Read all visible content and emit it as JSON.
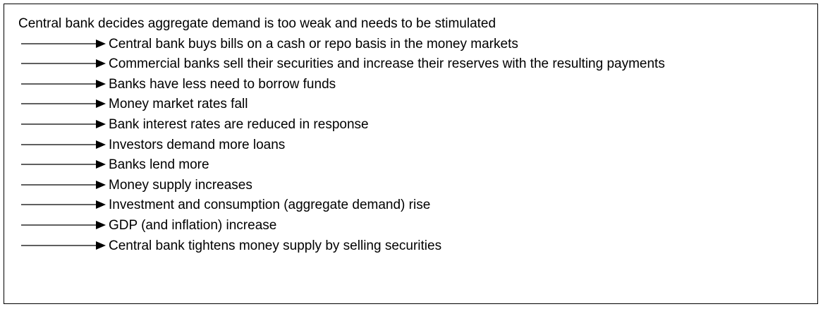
{
  "heading": "Central bank decides aggregate demand is too weak and needs to be stimulated",
  "steps": [
    "Central bank buys bills on a cash or repo basis in the money markets",
    "Commercial banks sell their securities and increase their reserves with the resulting payments",
    "Banks have less need to borrow funds",
    "Money market rates fall",
    "Bank interest rates are reduced in response",
    "Investors demand more loans",
    "Banks lend more",
    "Money supply increases",
    "Investment and consumption (aggregate demand) rise",
    "GDP (and inflation) increase",
    "Central bank tightens money supply by selling securities"
  ]
}
